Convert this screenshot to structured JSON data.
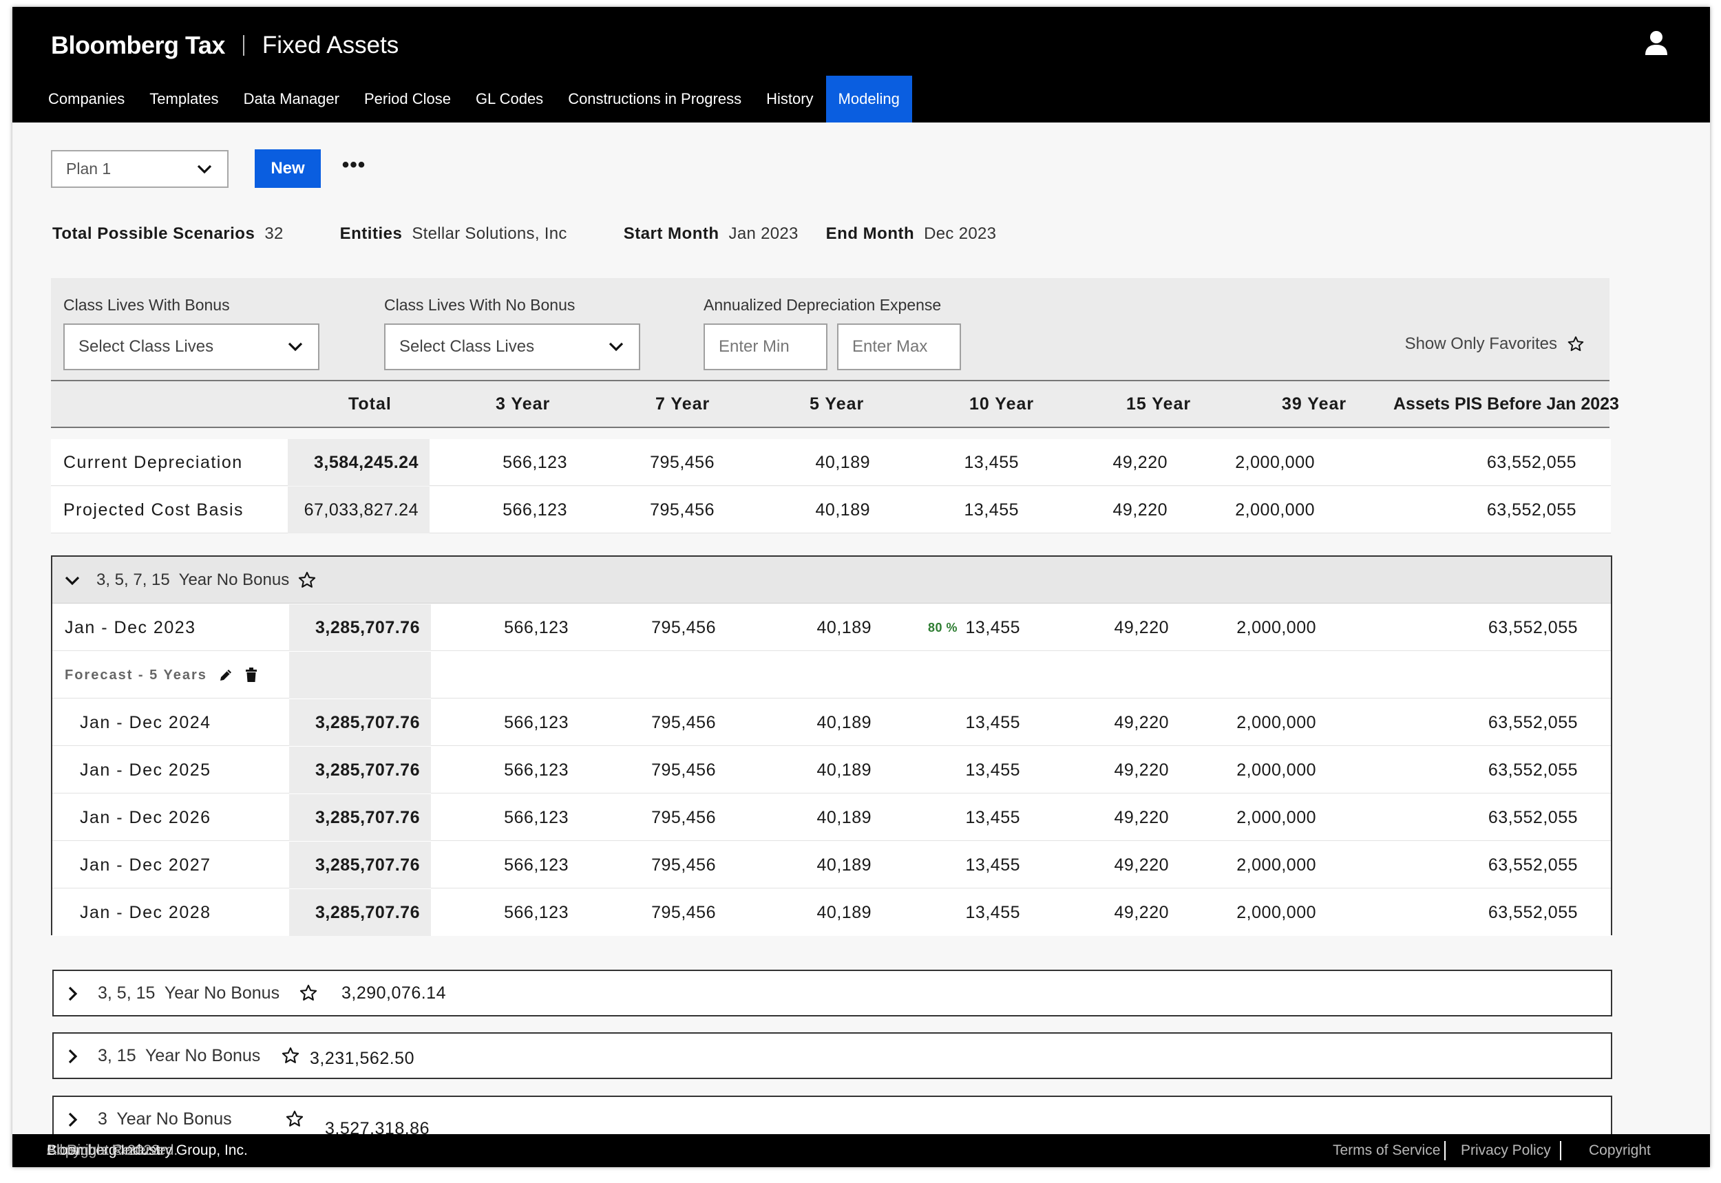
{
  "header": {
    "brand": "Bloomberg Tax",
    "product": "Fixed Assets",
    "nav": [
      "Companies",
      "Templates",
      "Data Manager",
      "Period Close",
      "GL Codes",
      "Constructions in Progress",
      "History",
      "Modeling"
    ],
    "active_nav": "Modeling"
  },
  "toolbar": {
    "plan_value": "Plan 1",
    "new_label": "New",
    "more_label": "•••"
  },
  "summary": {
    "scenarios_label": "Total Possible Scenarios",
    "scenarios_value": "32",
    "entities_label": "Entities",
    "entities_value": "Stellar Solutions, Inc",
    "start_label": "Start Month",
    "start_value": "Jan 2023",
    "end_label": "End Month",
    "end_value": "Dec 2023"
  },
  "filters": {
    "bonus_label": "Class Lives With Bonus",
    "bonus_placeholder": "Select Class Lives",
    "nobonus_label": "Class Lives With No Bonus",
    "nobonus_placeholder": "Select Class Lives",
    "expense_label": "Annualized Depreciation Expense",
    "min_placeholder": "Enter Min",
    "max_placeholder": "Enter Max",
    "favorites_label": "Show Only Favorites"
  },
  "table": {
    "columns": [
      "Total",
      "3 Year",
      "7 Year",
      "5 Year",
      "10 Year",
      "15 Year",
      "39 Year",
      "Assets PIS Before Jan 2023"
    ],
    "summary_rows": [
      {
        "label": "Current Depreciation",
        "cells": [
          "3,584,245.24",
          "566,123",
          "795,456",
          "40,189",
          "13,455",
          "49,220",
          "2,000,000",
          "63,552,055"
        ]
      },
      {
        "label": "Projected Cost Basis",
        "cells": [
          "67,033,827.24",
          "566,123",
          "795,456",
          "40,189",
          "13,455",
          "49,220",
          "2,000,000",
          "63,552,055"
        ]
      }
    ]
  },
  "expanded_scenario": {
    "title": "3, 5, 7, 15  Year No Bonus",
    "current_row": {
      "label": "Jan - Dec 2023",
      "cells": [
        "3,285,707.76",
        "566,123",
        "795,456",
        "40,189",
        "13,455",
        "49,220",
        "2,000,000",
        "63,552,055"
      ],
      "badge": "80 %"
    },
    "forecast_label": "Forecast - 5 Years",
    "forecast_rows": [
      {
        "label": "Jan - Dec 2024",
        "cells": [
          "3,285,707.76",
          "566,123",
          "795,456",
          "40,189",
          "13,455",
          "49,220",
          "2,000,000",
          "63,552,055"
        ]
      },
      {
        "label": "Jan - Dec 2025",
        "cells": [
          "3,285,707.76",
          "566,123",
          "795,456",
          "40,189",
          "13,455",
          "49,220",
          "2,000,000",
          "63,552,055"
        ]
      },
      {
        "label": "Jan - Dec 2026",
        "cells": [
          "3,285,707.76",
          "566,123",
          "795,456",
          "40,189",
          "13,455",
          "49,220",
          "2,000,000",
          "63,552,055"
        ]
      },
      {
        "label": "Jan - Dec 2027",
        "cells": [
          "3,285,707.76",
          "566,123",
          "795,456",
          "40,189",
          "13,455",
          "49,220",
          "2,000,000",
          "63,552,055"
        ]
      },
      {
        "label": "Jan - Dec 2028",
        "cells": [
          "3,285,707.76",
          "566,123",
          "795,456",
          "40,189",
          "13,455",
          "49,220",
          "2,000,000",
          "63,552,055"
        ]
      }
    ]
  },
  "collapsed_scenarios": [
    {
      "title": "3, 5, 15  Year No Bonus",
      "total": "3,290,076.14"
    },
    {
      "title": "3, 15  Year No Bonus",
      "total": "3,231,562.50"
    },
    {
      "title": "3  Year No Bonus",
      "total": "3,527,318.86"
    }
  ],
  "footer": {
    "copyright_prefix": "Copyright © 2023",
    "company": "Bloomberg Industry Group, Inc.",
    "rights": "All Rights Reserved.",
    "links": [
      "Terms of Service",
      "Privacy Policy",
      "Copyright"
    ]
  },
  "colors": {
    "primary": "#0a5ee0",
    "header_bg": "#000000",
    "badge_green": "#2e7d32"
  },
  "icons": [
    "user-icon",
    "chevron-down-icon",
    "chevron-right-icon",
    "star-outline-icon",
    "pencil-icon",
    "trash-icon",
    "more-icon"
  ]
}
